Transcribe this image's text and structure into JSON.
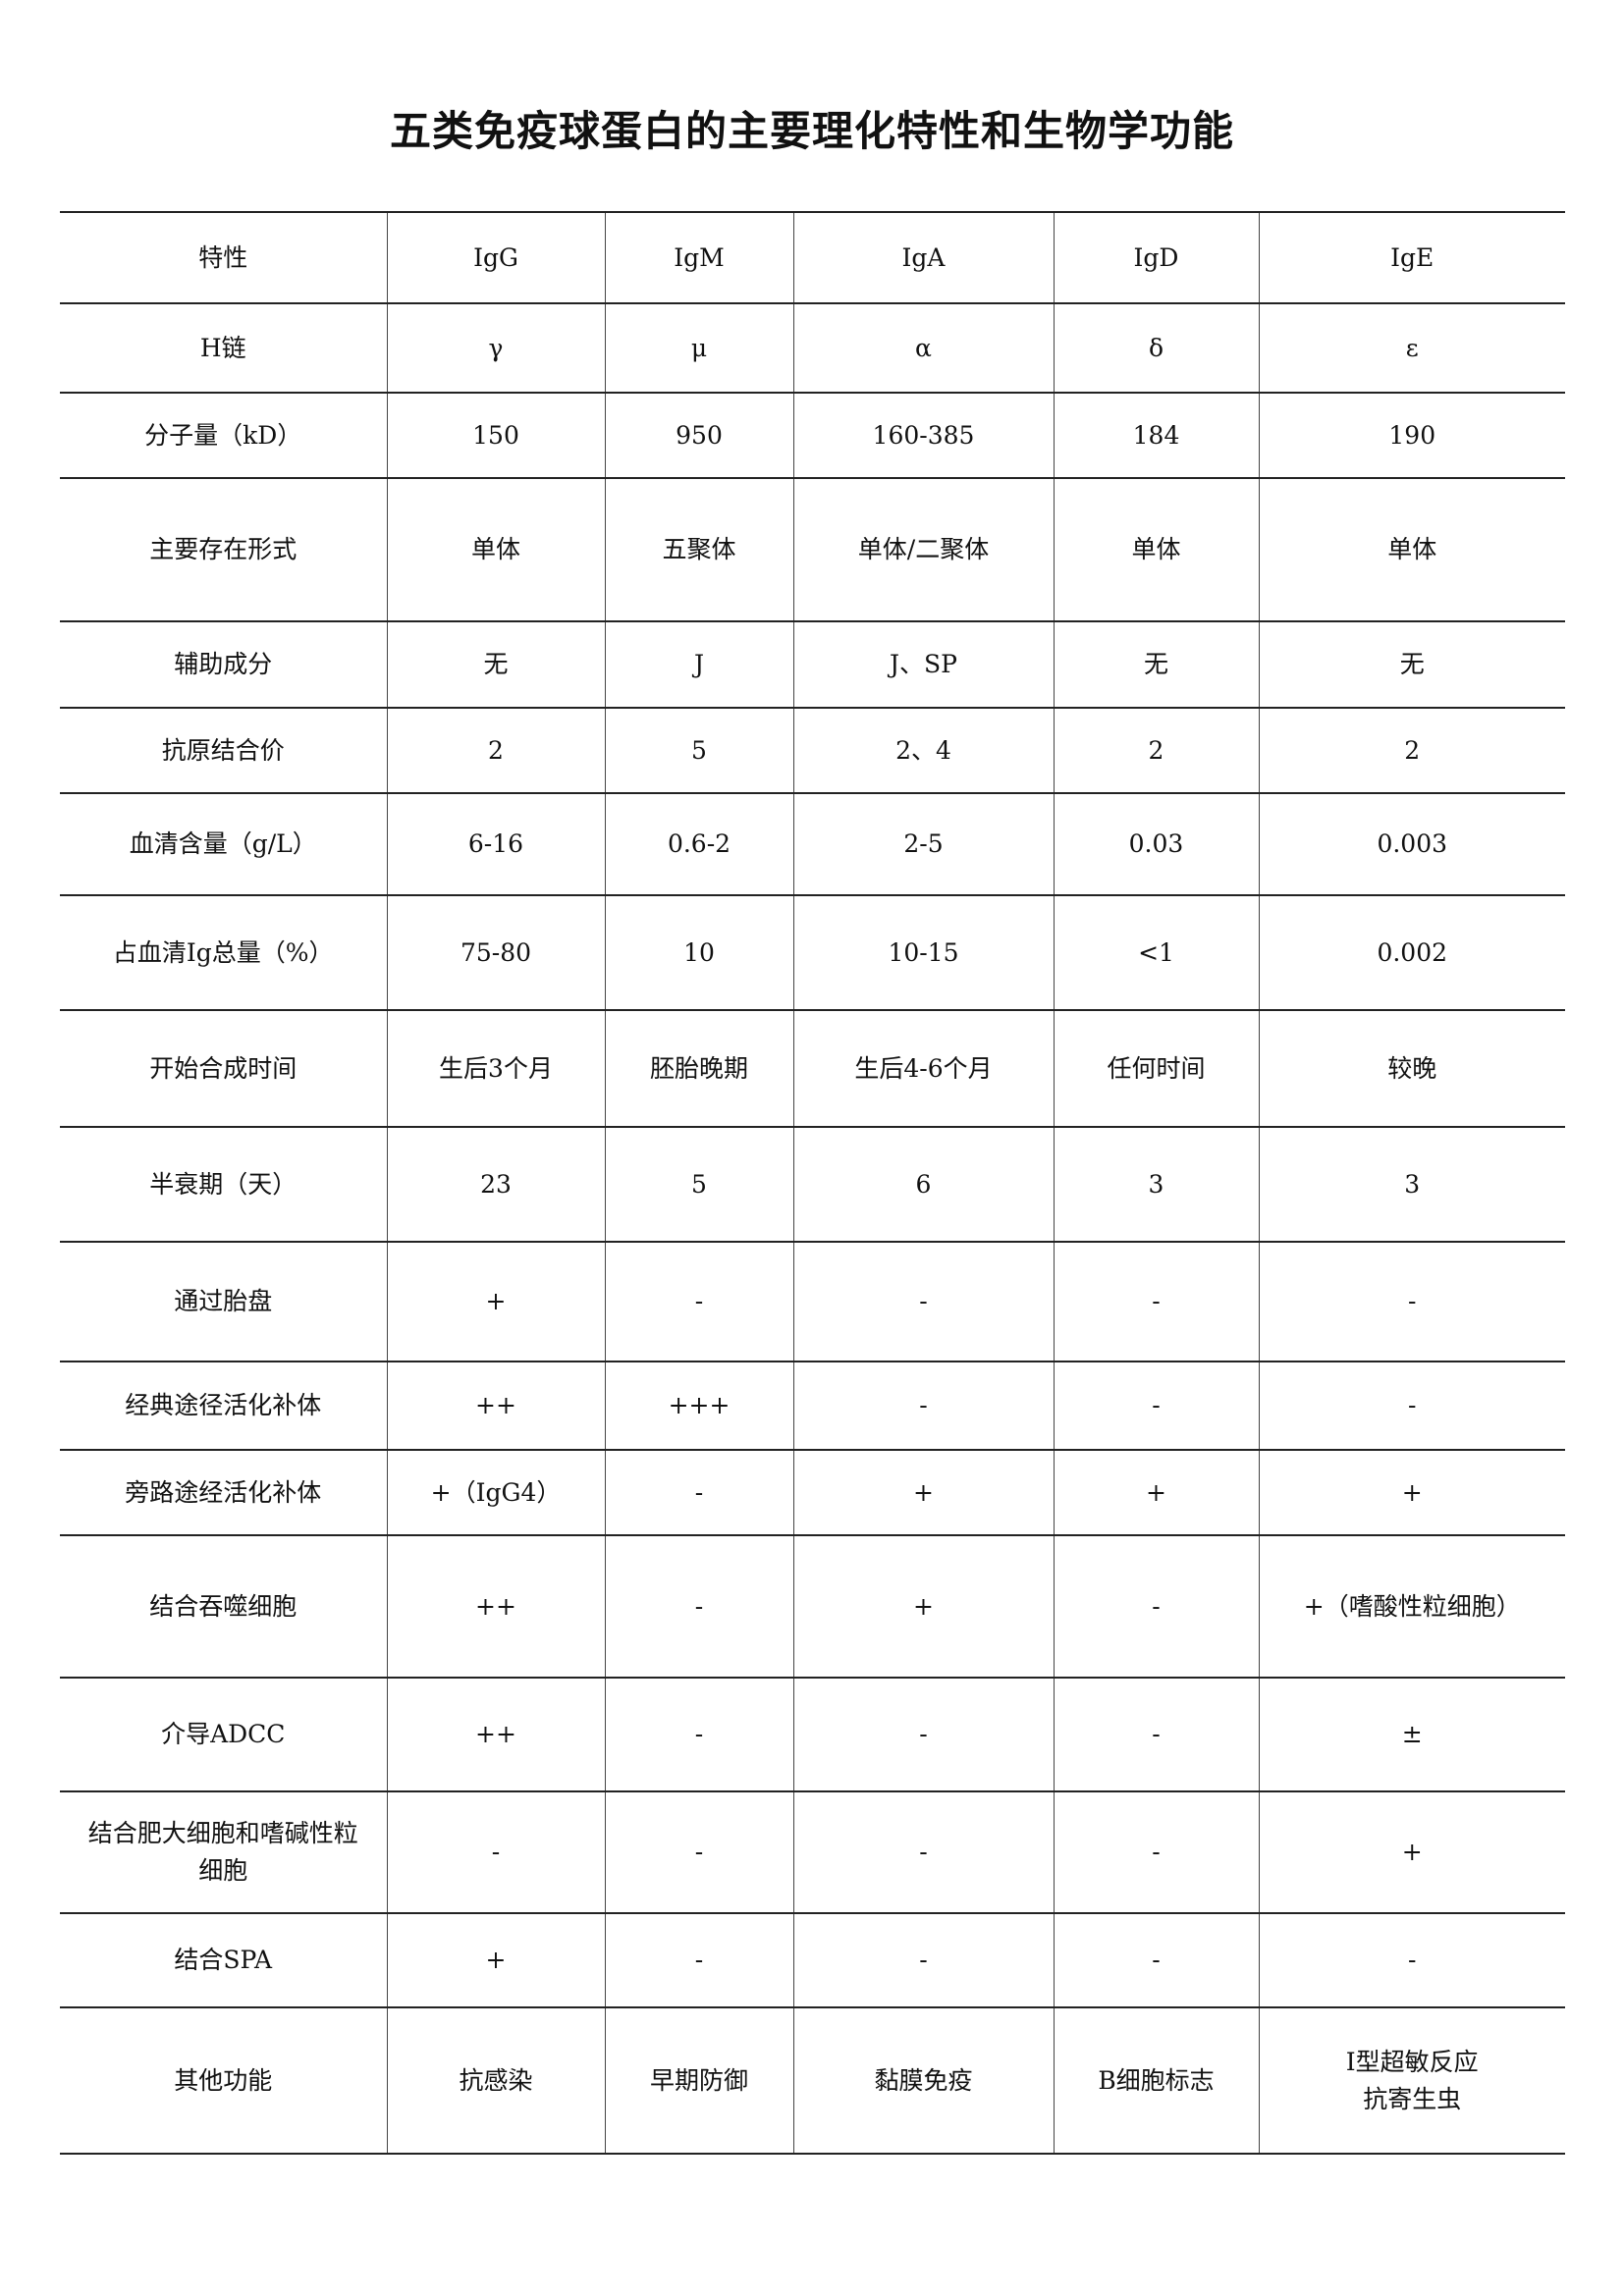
{
  "title": "五类免疫球蛋白的主要理化特性和生物学功能",
  "table": {
    "header": [
      "特性",
      "IgG",
      "IgM",
      "IgA",
      "IgD",
      "IgE"
    ],
    "rows": [
      [
        "H链",
        "γ",
        "μ",
        "α",
        "δ",
        "ε"
      ],
      [
        "分子量（kD）",
        "150",
        "950",
        "160-385",
        "184",
        "190"
      ],
      [
        "主要存在形式",
        "单体",
        "五聚体",
        "单体/二聚体",
        "单体",
        "单体"
      ],
      [
        "辅助成分",
        "无",
        "J",
        "J、SP",
        "无",
        "无"
      ],
      [
        "抗原结合价",
        "2",
        "5",
        "2、4",
        "2",
        "2"
      ],
      [
        "血清含量（g/L）",
        "6-16",
        "0.6-2",
        "2-5",
        "0.03",
        "0.003"
      ],
      [
        "占血清Ig总量（%）",
        "75-80",
        "10",
        "10-15",
        "<1",
        "0.002"
      ],
      [
        "开始合成时间",
        "生后3个月",
        "胚胎晚期",
        "生后4-6个月",
        "任何时间",
        "较晚"
      ],
      [
        "半衰期（天）",
        "23",
        "5",
        "6",
        "3",
        "3"
      ],
      [
        "通过胎盘",
        "+",
        "-",
        "-",
        "-",
        "-"
      ],
      [
        "经典途径活化补体",
        "++",
        "+++",
        "-",
        "-",
        "-"
      ],
      [
        "旁路途经活化补体",
        "+（IgG4）",
        "-",
        "+",
        "+",
        "+"
      ],
      [
        "结合吞噬细胞",
        "++",
        "-",
        "+",
        "-",
        "+（嗜酸性粒细胞）"
      ],
      [
        "介导ADCC",
        "++",
        "-",
        "-",
        "-",
        "±"
      ],
      [
        "结合肥大细胞和嗜碱性粒细胞",
        "-",
        "-",
        "-",
        "-",
        "+"
      ],
      [
        "结合SPA",
        "+",
        "-",
        "-",
        "-",
        "-"
      ],
      [
        "其他功能",
        "抗感染",
        "早期防御",
        "黏膜免疫",
        "B细胞标志",
        "Ⅰ型超敏反应\n抗寄生虫"
      ]
    ]
  }
}
